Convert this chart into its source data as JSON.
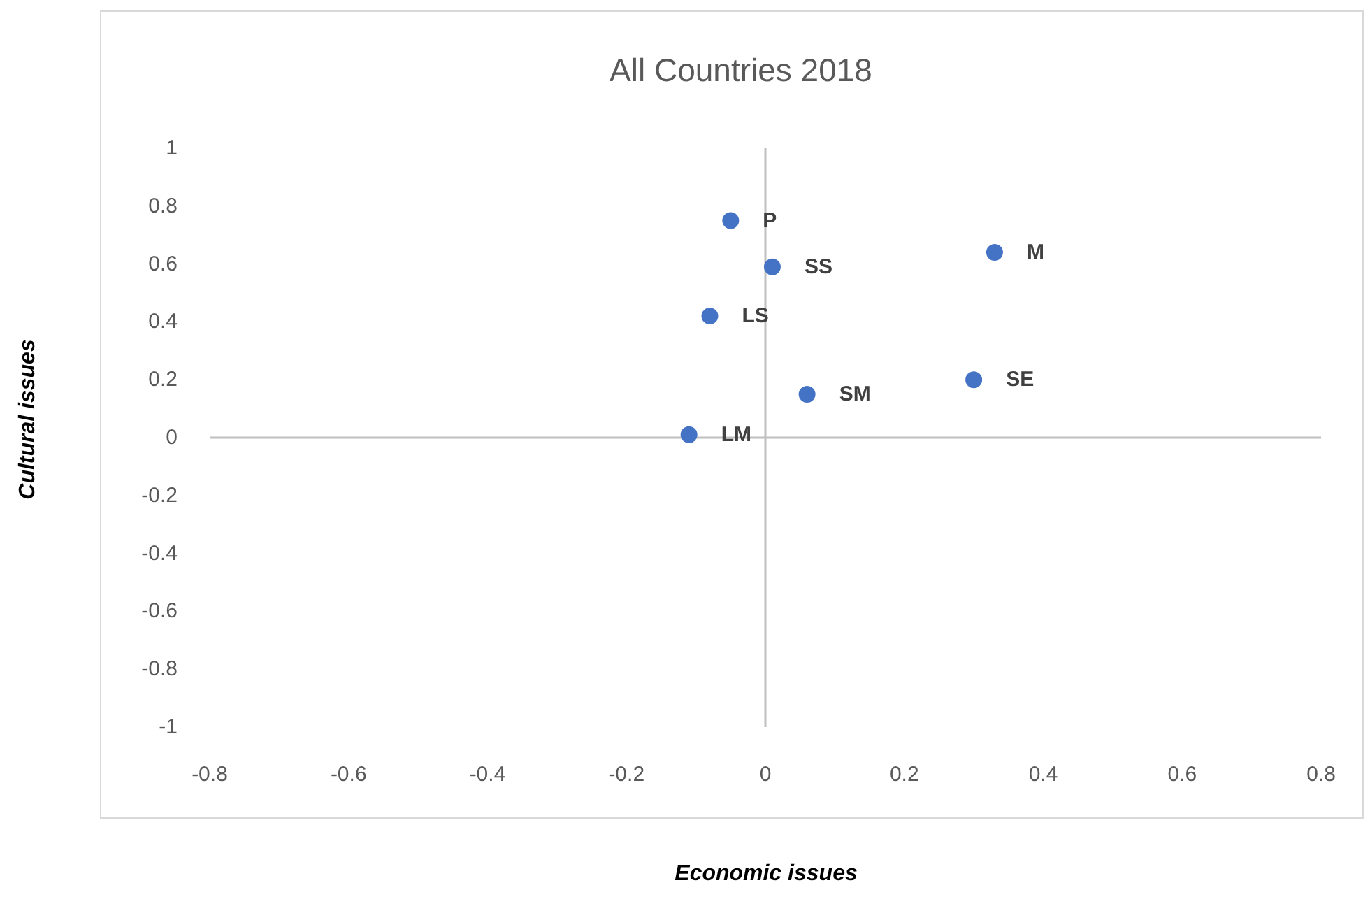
{
  "chart_data": {
    "type": "scatter",
    "title": "All Countries 2018",
    "xlabel": "Economic issues",
    "ylabel": "Cultural issues",
    "x": [
      -0.05,
      0.01,
      0.33,
      -0.08,
      0.3,
      0.06,
      -0.11
    ],
    "series": [
      {
        "color": "#4472c4",
        "values": [
          0.75,
          0.59,
          0.64,
          0.42,
          0.2,
          0.15,
          0.01
        ]
      }
    ],
    "xlim": [
      -0.8,
      0.8
    ],
    "ylim": [
      -1,
      1
    ],
    "xticks": [
      -0.8,
      -0.6,
      -0.4,
      -0.2,
      0,
      0.2,
      0.4,
      0.6,
      0.8
    ],
    "yticks": [
      -1,
      -0.8,
      -0.6,
      -0.4,
      -0.2,
      0,
      0.2,
      0.4,
      0.6,
      0.8,
      1
    ],
    "marker": "circle",
    "annotations": [
      {
        "text": "P",
        "x": -0.05,
        "y": 0.75
      },
      {
        "text": "SS",
        "x": 0.01,
        "y": 0.59
      },
      {
        "text": "M",
        "x": 0.33,
        "y": 0.64
      },
      {
        "text": "LS",
        "x": -0.08,
        "y": 0.42
      },
      {
        "text": "SE",
        "x": 0.3,
        "y": 0.2
      },
      {
        "text": "SM",
        "x": 0.06,
        "y": 0.15
      },
      {
        "text": "LM",
        "x": -0.11,
        "y": 0.01
      }
    ]
  }
}
